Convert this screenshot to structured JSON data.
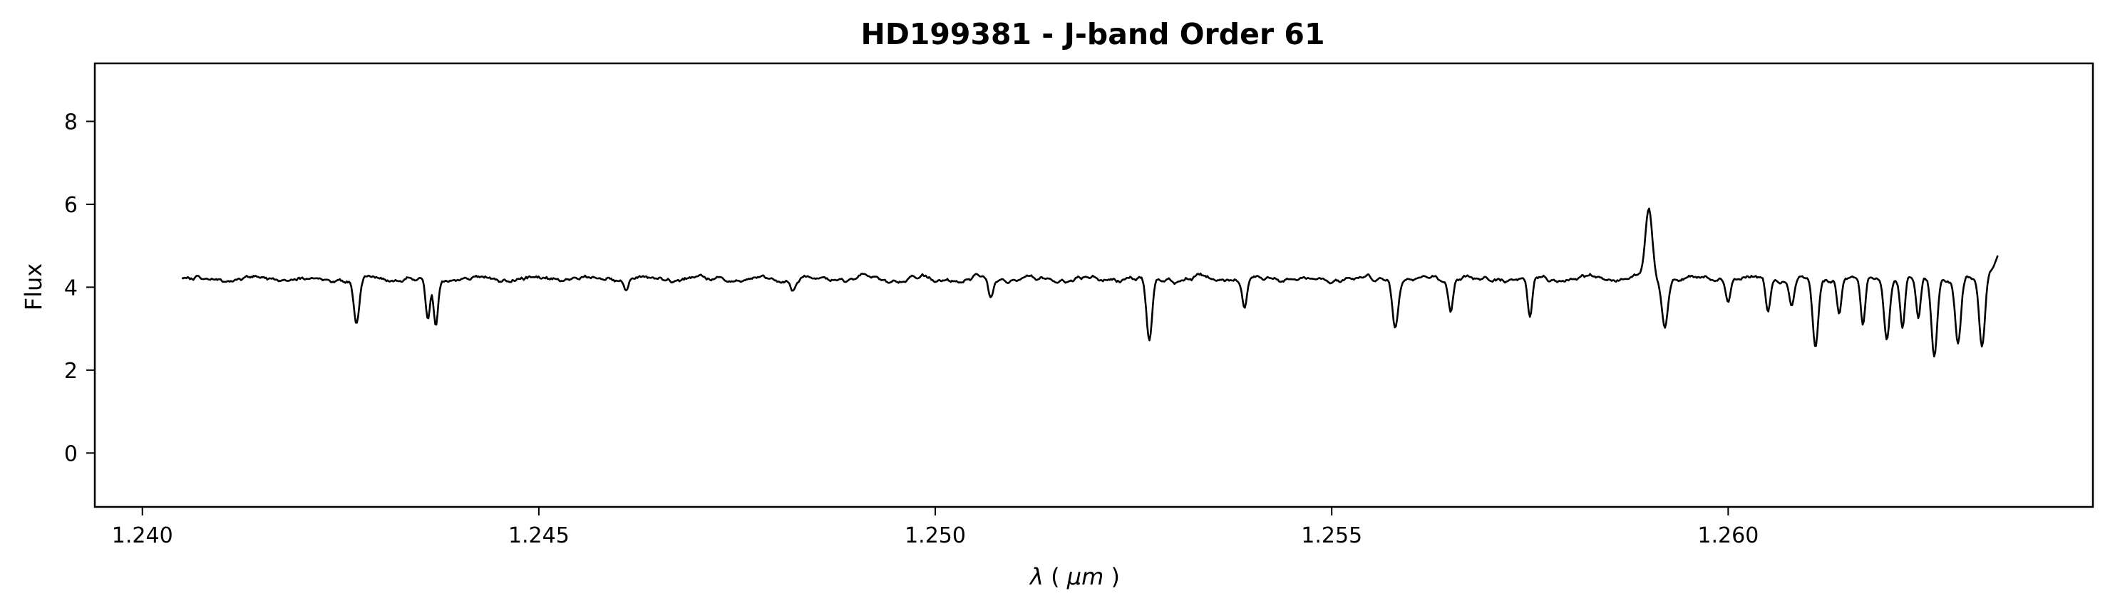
{
  "chart_data": {
    "type": "line",
    "title": "HD199381 - J-band Order 61",
    "xlabel": {
      "symbol": "λ",
      "unit": "μm"
    },
    "ylabel": "Flux",
    "xlim": [
      1.2394,
      1.2646
    ],
    "ylim": [
      -1.3,
      9.4
    ],
    "xticks": [
      1.24,
      1.245,
      1.25,
      1.255,
      1.26
    ],
    "xtick_labels": [
      "1.240",
      "1.245",
      "1.250",
      "1.255",
      "1.260"
    ],
    "yticks": [
      0,
      2,
      4,
      6,
      8
    ],
    "ytick_labels": [
      "0",
      "2",
      "4",
      "6",
      "8"
    ],
    "grid": false,
    "legend": "none",
    "line_color": "#000000",
    "series": [
      {
        "x_range": [
          1.2405,
          1.2634
        ],
        "continuum": 4.2,
        "noise_amplitude": 0.09,
        "start_value": 4.3,
        "end_value": 4.8,
        "features": [
          [
            1.2427,
            3.15,
            5e-05
          ],
          [
            1.2436,
            3.2,
            4e-05
          ],
          [
            1.2437,
            3.0,
            4e-05
          ],
          [
            1.2461,
            3.95,
            4e-05
          ],
          [
            1.2482,
            3.9,
            4e-05
          ],
          [
            1.2507,
            3.75,
            4e-05
          ],
          [
            1.2527,
            2.7,
            5e-05
          ],
          [
            1.2539,
            3.45,
            4e-05
          ],
          [
            1.2558,
            3.1,
            5e-05
          ],
          [
            1.2565,
            3.5,
            4e-05
          ],
          [
            1.2575,
            3.25,
            4e-05
          ],
          [
            1.259,
            5.85,
            6e-05
          ],
          [
            1.2592,
            3.1,
            5e-05
          ],
          [
            1.26,
            3.6,
            4e-05
          ],
          [
            1.2605,
            3.45,
            4e-05
          ],
          [
            1.2608,
            3.6,
            4e-05
          ],
          [
            1.2611,
            2.55,
            5e-05
          ],
          [
            1.2614,
            3.4,
            4e-05
          ],
          [
            1.2617,
            3.05,
            4e-05
          ],
          [
            1.262,
            2.8,
            5e-05
          ],
          [
            1.2622,
            3.1,
            4e-05
          ],
          [
            1.2624,
            3.2,
            4e-05
          ],
          [
            1.2626,
            2.3,
            5e-05
          ],
          [
            1.2629,
            2.65,
            5e-05
          ],
          [
            1.2632,
            2.55,
            5e-05
          ]
        ]
      }
    ]
  }
}
